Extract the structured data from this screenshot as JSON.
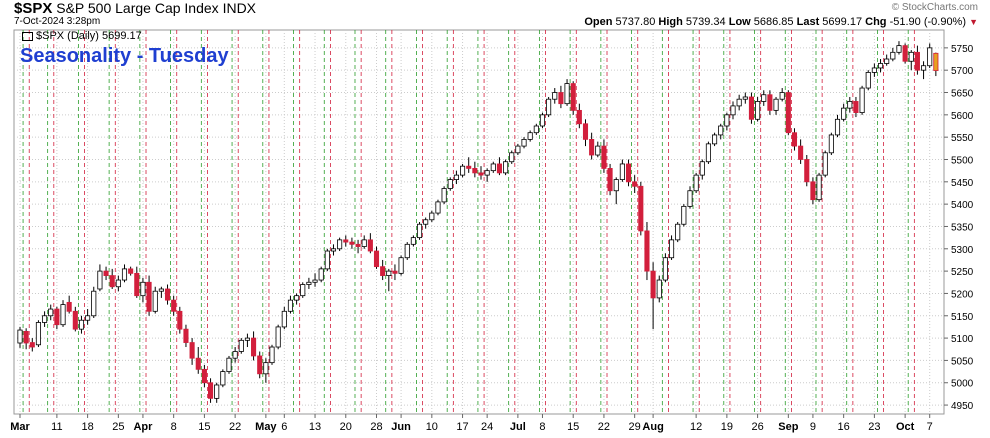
{
  "header": {
    "symbol": "$SPX",
    "name": "S&P 500 Large Cap Index",
    "exchange": "INDX",
    "date": "7-Oct-2024 3:28pm",
    "watermark": "© StockCharts.com",
    "open_label": "Open",
    "open": "5737.80",
    "high_label": "High",
    "high": "5739.34",
    "low_label": "Low",
    "low": "5686.85",
    "last_label": "Last",
    "last": "5699.17",
    "chg_label": "Chg",
    "chg": "-51.90 (-0.90%)"
  },
  "legend": "$SPX (Daily) 5699.17",
  "colors": {
    "up": "#ffffff",
    "down": "#d21f3c",
    "tuesday_line": "#2a9d2a",
    "monday_line": "#d21f3c",
    "title": "#1f3fd1",
    "grid": "#cccccc"
  },
  "chart_data": {
    "type": "candlestick",
    "title": "Seasonality - Tuesday",
    "ylim": [
      4930,
      5790
    ],
    "y_ticks": [
      4950,
      5000,
      5050,
      5100,
      5150,
      5200,
      5250,
      5300,
      5350,
      5400,
      5450,
      5500,
      5550,
      5600,
      5650,
      5700,
      5750
    ],
    "x_ticks": [
      {
        "i": 0,
        "label": "Mar",
        "major": true
      },
      {
        "i": 6,
        "label": "11"
      },
      {
        "i": 11,
        "label": "18"
      },
      {
        "i": 16,
        "label": "25"
      },
      {
        "i": 20,
        "label": "Apr",
        "major": true
      },
      {
        "i": 25,
        "label": "8"
      },
      {
        "i": 30,
        "label": "15"
      },
      {
        "i": 35,
        "label": "22"
      },
      {
        "i": 40,
        "label": "May",
        "major": true
      },
      {
        "i": 43,
        "label": "6"
      },
      {
        "i": 48,
        "label": "13"
      },
      {
        "i": 53,
        "label": "20"
      },
      {
        "i": 58,
        "label": "28"
      },
      {
        "i": 62,
        "label": "Jun",
        "major": true
      },
      {
        "i": 67,
        "label": "10"
      },
      {
        "i": 72,
        "label": "17"
      },
      {
        "i": 76,
        "label": "24"
      },
      {
        "i": 81,
        "label": "Jul",
        "major": true
      },
      {
        "i": 85,
        "label": "8"
      },
      {
        "i": 90,
        "label": "15"
      },
      {
        "i": 95,
        "label": "22"
      },
      {
        "i": 100,
        "label": "29"
      },
      {
        "i": 103,
        "label": "Aug",
        "major": true
      },
      {
        "i": 110,
        "label": "12"
      },
      {
        "i": 115,
        "label": "19"
      },
      {
        "i": 120,
        "label": "26"
      },
      {
        "i": 125,
        "label": "Sep",
        "major": true
      },
      {
        "i": 129,
        "label": "9"
      },
      {
        "i": 134,
        "label": "16"
      },
      {
        "i": 139,
        "label": "23"
      },
      {
        "i": 144,
        "label": "Oct",
        "major": true
      },
      {
        "i": 148,
        "label": "7"
      }
    ],
    "tuesday_idx": [
      0,
      4,
      9,
      14,
      19,
      24,
      29,
      34,
      39,
      44,
      49,
      54,
      59,
      64,
      69,
      74,
      79,
      84,
      89,
      94,
      99,
      104,
      109,
      114,
      119,
      124,
      129,
      134,
      139,
      144
    ],
    "monday_idx": [
      2,
      6,
      11,
      16,
      21,
      26,
      31,
      36,
      41,
      46,
      51,
      56,
      61,
      66,
      71,
      76,
      81,
      86,
      91,
      96,
      101,
      106,
      111,
      116,
      121,
      126,
      131,
      136,
      141,
      146
    ],
    "candles": [
      [
        5089,
        5125,
        5078,
        5118
      ],
      [
        5115,
        5122,
        5075,
        5089
      ],
      [
        5090,
        5100,
        5070,
        5080
      ],
      [
        5085,
        5140,
        5080,
        5135
      ],
      [
        5135,
        5160,
        5125,
        5150
      ],
      [
        5150,
        5175,
        5140,
        5165
      ],
      [
        5165,
        5170,
        5120,
        5130
      ],
      [
        5130,
        5185,
        5125,
        5175
      ],
      [
        5180,
        5195,
        5155,
        5160
      ],
      [
        5160,
        5170,
        5115,
        5120
      ],
      [
        5120,
        5150,
        5110,
        5140
      ],
      [
        5140,
        5165,
        5130,
        5150
      ],
      [
        5150,
        5215,
        5145,
        5205
      ],
      [
        5210,
        5265,
        5205,
        5250
      ],
      [
        5250,
        5260,
        5230,
        5240
      ],
      [
        5240,
        5255,
        5210,
        5215
      ],
      [
        5215,
        5240,
        5205,
        5230
      ],
      [
        5230,
        5265,
        5225,
        5255
      ],
      [
        5255,
        5260,
        5240,
        5245
      ],
      [
        5245,
        5260,
        5190,
        5195
      ],
      [
        5195,
        5235,
        5180,
        5225
      ],
      [
        5225,
        5240,
        5150,
        5160
      ],
      [
        5160,
        5215,
        5155,
        5205
      ],
      [
        5205,
        5215,
        5190,
        5210
      ],
      [
        5210,
        5220,
        5175,
        5185
      ],
      [
        5185,
        5195,
        5150,
        5160
      ],
      [
        5160,
        5170,
        5110,
        5120
      ],
      [
        5120,
        5130,
        5080,
        5090
      ],
      [
        5090,
        5100,
        5040,
        5055
      ],
      [
        5055,
        5080,
        5020,
        5030
      ],
      [
        5030,
        5040,
        4990,
        5000
      ],
      [
        5000,
        5010,
        4955,
        4965
      ],
      [
        4965,
        5000,
        4955,
        4995
      ],
      [
        4995,
        5030,
        4990,
        5025
      ],
      [
        5025,
        5060,
        5020,
        5055
      ],
      [
        5055,
        5080,
        5045,
        5070
      ],
      [
        5070,
        5100,
        5065,
        5095
      ],
      [
        5095,
        5110,
        5080,
        5100
      ],
      [
        5100,
        5115,
        5050,
        5060
      ],
      [
        5060,
        5070,
        5010,
        5020
      ],
      [
        5020,
        5055,
        5000,
        5045
      ],
      [
        5045,
        5085,
        5040,
        5080
      ],
      [
        5080,
        5130,
        5075,
        5125
      ],
      [
        5125,
        5170,
        5120,
        5160
      ],
      [
        5160,
        5195,
        5155,
        5185
      ],
      [
        5185,
        5200,
        5175,
        5195
      ],
      [
        5195,
        5225,
        5190,
        5220
      ],
      [
        5220,
        5235,
        5210,
        5225
      ],
      [
        5225,
        5245,
        5215,
        5230
      ],
      [
        5230,
        5260,
        5225,
        5255
      ],
      [
        5255,
        5300,
        5250,
        5295
      ],
      [
        5295,
        5310,
        5285,
        5300
      ],
      [
        5300,
        5325,
        5295,
        5320
      ],
      [
        5320,
        5330,
        5305,
        5315
      ],
      [
        5315,
        5325,
        5300,
        5310
      ],
      [
        5310,
        5320,
        5290,
        5305
      ],
      [
        5305,
        5330,
        5300,
        5320
      ],
      [
        5320,
        5335,
        5290,
        5295
      ],
      [
        5295,
        5305,
        5255,
        5260
      ],
      [
        5260,
        5275,
        5230,
        5240
      ],
      [
        5240,
        5255,
        5205,
        5250
      ],
      [
        5250,
        5265,
        5230,
        5245
      ],
      [
        5245,
        5285,
        5240,
        5280
      ],
      [
        5280,
        5315,
        5275,
        5310
      ],
      [
        5310,
        5330,
        5305,
        5325
      ],
      [
        5325,
        5360,
        5320,
        5355
      ],
      [
        5355,
        5370,
        5345,
        5365
      ],
      [
        5365,
        5385,
        5360,
        5380
      ],
      [
        5380,
        5410,
        5375,
        5405
      ],
      [
        5405,
        5440,
        5400,
        5435
      ],
      [
        5435,
        5460,
        5430,
        5455
      ],
      [
        5455,
        5475,
        5445,
        5465
      ],
      [
        5465,
        5490,
        5460,
        5485
      ],
      [
        5485,
        5505,
        5470,
        5480
      ],
      [
        5480,
        5495,
        5460,
        5470
      ],
      [
        5470,
        5485,
        5455,
        5465
      ],
      [
        5465,
        5480,
        5450,
        5475
      ],
      [
        5475,
        5495,
        5470,
        5490
      ],
      [
        5490,
        5505,
        5465,
        5470
      ],
      [
        5470,
        5500,
        5465,
        5495
      ],
      [
        5495,
        5520,
        5490,
        5515
      ],
      [
        5515,
        5535,
        5510,
        5530
      ],
      [
        5530,
        5550,
        5525,
        5545
      ],
      [
        5545,
        5565,
        5540,
        5560
      ],
      [
        5560,
        5580,
        5555,
        5575
      ],
      [
        5575,
        5605,
        5570,
        5600
      ],
      [
        5600,
        5640,
        5595,
        5635
      ],
      [
        5635,
        5660,
        5625,
        5650
      ],
      [
        5650,
        5665,
        5615,
        5625
      ],
      [
        5625,
        5680,
        5620,
        5670
      ],
      [
        5670,
        5675,
        5600,
        5610
      ],
      [
        5610,
        5625,
        5570,
        5580
      ],
      [
        5580,
        5590,
        5530,
        5545
      ],
      [
        5545,
        5560,
        5500,
        5510
      ],
      [
        5510,
        5540,
        5505,
        5530
      ],
      [
        5530,
        5545,
        5470,
        5480
      ],
      [
        5480,
        5490,
        5420,
        5430
      ],
      [
        5430,
        5460,
        5400,
        5455
      ],
      [
        5455,
        5500,
        5450,
        5490
      ],
      [
        5490,
        5500,
        5440,
        5450
      ],
      [
        5450,
        5465,
        5425,
        5440
      ],
      [
        5440,
        5450,
        5330,
        5340
      ],
      [
        5340,
        5360,
        5230,
        5250
      ],
      [
        5250,
        5270,
        5120,
        5190
      ],
      [
        5190,
        5240,
        5180,
        5230
      ],
      [
        5230,
        5290,
        5225,
        5280
      ],
      [
        5280,
        5330,
        5275,
        5320
      ],
      [
        5320,
        5360,
        5315,
        5355
      ],
      [
        5355,
        5400,
        5350,
        5395
      ],
      [
        5395,
        5440,
        5390,
        5430
      ],
      [
        5430,
        5470,
        5425,
        5465
      ],
      [
        5465,
        5500,
        5455,
        5495
      ],
      [
        5495,
        5540,
        5490,
        5535
      ],
      [
        5535,
        5560,
        5530,
        5555
      ],
      [
        5555,
        5580,
        5545,
        5575
      ],
      [
        5575,
        5605,
        5565,
        5600
      ],
      [
        5600,
        5630,
        5590,
        5620
      ],
      [
        5620,
        5645,
        5610,
        5635
      ],
      [
        5635,
        5650,
        5625,
        5640
      ],
      [
        5640,
        5650,
        5580,
        5590
      ],
      [
        5590,
        5640,
        5585,
        5630
      ],
      [
        5630,
        5655,
        5620,
        5645
      ],
      [
        5645,
        5655,
        5600,
        5610
      ],
      [
        5610,
        5640,
        5600,
        5635
      ],
      [
        5635,
        5660,
        5630,
        5650
      ],
      [
        5650,
        5655,
        5555,
        5560
      ],
      [
        5560,
        5570,
        5520,
        5530
      ],
      [
        5530,
        5545,
        5490,
        5500
      ],
      [
        5500,
        5510,
        5440,
        5450
      ],
      [
        5450,
        5460,
        5400,
        5410
      ],
      [
        5410,
        5470,
        5405,
        5465
      ],
      [
        5465,
        5520,
        5460,
        5515
      ],
      [
        5515,
        5560,
        5510,
        5555
      ],
      [
        5555,
        5600,
        5550,
        5590
      ],
      [
        5590,
        5625,
        5585,
        5615
      ],
      [
        5615,
        5640,
        5605,
        5630
      ],
      [
        5630,
        5640,
        5595,
        5605
      ],
      [
        5605,
        5665,
        5600,
        5660
      ],
      [
        5660,
        5700,
        5655,
        5695
      ],
      [
        5695,
        5715,
        5685,
        5705
      ],
      [
        5705,
        5725,
        5695,
        5715
      ],
      [
        5715,
        5735,
        5710,
        5725
      ],
      [
        5725,
        5750,
        5720,
        5740
      ],
      [
        5740,
        5765,
        5735,
        5755
      ],
      [
        5755,
        5760,
        5715,
        5720
      ],
      [
        5720,
        5745,
        5700,
        5740
      ],
      [
        5740,
        5755,
        5690,
        5700
      ],
      [
        5700,
        5720,
        5680,
        5710
      ],
      [
        5710,
        5760,
        5705,
        5750
      ],
      [
        5737.8,
        5739.34,
        5686.85,
        5699.17
      ]
    ]
  }
}
